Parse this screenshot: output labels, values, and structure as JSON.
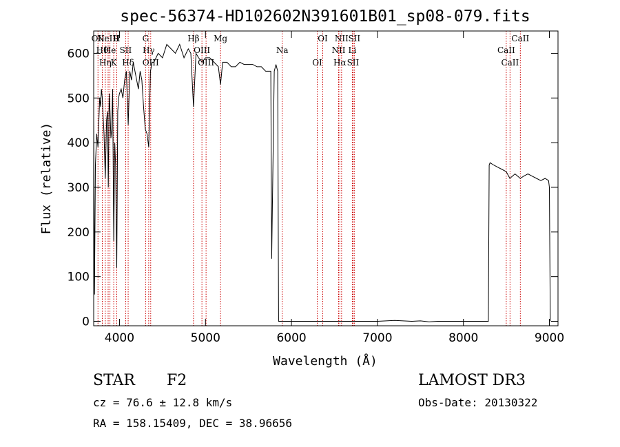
{
  "chart_data": {
    "type": "line",
    "title": "spec-56374-HD102602N391601B01_sp08-079.fits",
    "xlabel": "Wavelength (Å)",
    "ylabel": "Flux (relative)",
    "xlim": [
      3700,
      9100
    ],
    "ylim": [
      -10,
      650
    ],
    "xticks": [
      4000,
      5000,
      6000,
      7000,
      8000,
      9000
    ],
    "yticks": [
      0,
      100,
      200,
      300,
      400,
      500,
      600
    ],
    "grid": false,
    "series": [
      {
        "x": [
          3700,
          3710,
          3720,
          3735,
          3750,
          3760,
          3770,
          3780,
          3790,
          3800,
          3810,
          3820,
          3835,
          3850,
          3860,
          3870,
          3880,
          3890,
          3900,
          3910,
          3920,
          3933,
          3945,
          3955,
          3968,
          3980,
          3990,
          4000,
          4020,
          4040,
          4060,
          4080,
          4101,
          4120,
          4140,
          4160,
          4180,
          4200,
          4220,
          4240,
          4260,
          4280,
          4300,
          4320,
          4340,
          4360,
          4380,
          4400,
          4450,
          4500,
          4550,
          4600,
          4650,
          4700,
          4750,
          4800,
          4830,
          4861,
          4890,
          4920,
          4960,
          5000,
          5050,
          5100,
          5150,
          5175,
          5200,
          5250,
          5300,
          5350,
          5400,
          5450,
          5500,
          5550,
          5600,
          5650,
          5700,
          5740,
          5760,
          5770,
          5780,
          5800,
          5820,
          5840,
          5850,
          5900,
          6000,
          6500,
          7000,
          7100,
          7200,
          7300,
          7400,
          7500,
          7600,
          7700,
          7800,
          7900,
          8000,
          8100,
          8200,
          8250,
          8290,
          8300,
          8310,
          8350,
          8400,
          8450,
          8498,
          8540,
          8600,
          8662,
          8700,
          8750,
          8800,
          8850,
          8900,
          8950,
          8990,
          9000,
          9010
        ],
        "y": [
          450,
          60,
          350,
          420,
          390,
          450,
          500,
          480,
          520,
          500,
          460,
          420,
          320,
          450,
          470,
          300,
          510,
          470,
          410,
          430,
          520,
          180,
          400,
          350,
          120,
          470,
          500,
          510,
          520,
          500,
          540,
          560,
          440,
          560,
          540,
          580,
          560,
          540,
          520,
          560,
          540,
          480,
          430,
          420,
          390,
          560,
          580,
          580,
          600,
          590,
          620,
          610,
          600,
          620,
          590,
          610,
          600,
          480,
          600,
          590,
          580,
          590,
          590,
          580,
          570,
          530,
          580,
          580,
          570,
          570,
          580,
          575,
          575,
          575,
          570,
          570,
          560,
          560,
          560,
          140,
          280,
          560,
          575,
          560,
          0,
          0,
          0,
          0,
          0,
          1,
          2,
          1,
          0,
          1,
          -1,
          0,
          0,
          0,
          0,
          0,
          0,
          0,
          0,
          350,
          355,
          350,
          345,
          340,
          335,
          320,
          330,
          320,
          325,
          330,
          325,
          320,
          315,
          320,
          315,
          300,
          0
        ]
      }
    ],
    "lines": [
      {
        "x": 3750,
        "label": "OII"
      },
      {
        "x": 3800,
        "label": "Hθ"
      },
      {
        "x": 3835,
        "label": "Hη"
      },
      {
        "x": 3868,
        "label": "NeIII"
      },
      {
        "x": 3889,
        "label": "He"
      },
      {
        "x": 3933,
        "label": "K"
      },
      {
        "x": 3968,
        "label": "H"
      },
      {
        "x": 4072,
        "label": "SII"
      },
      {
        "x": 4101,
        "label": "Hδ"
      },
      {
        "x": 4304,
        "label": "G"
      },
      {
        "x": 4340,
        "label": "Hγ"
      },
      {
        "x": 4363,
        "label": "OIII"
      },
      {
        "x": 4861,
        "label": "Hβ"
      },
      {
        "x": 4959,
        "label": "OIII"
      },
      {
        "x": 5007,
        "label": "OIII"
      },
      {
        "x": 5175,
        "label": "Mg"
      },
      {
        "x": 5893,
        "label": "Na"
      },
      {
        "x": 6300,
        "label": "OI"
      },
      {
        "x": 6364,
        "label": "OI"
      },
      {
        "x": 6548,
        "label": "NII"
      },
      {
        "x": 6563,
        "label": "Hα"
      },
      {
        "x": 6583,
        "label": "NII"
      },
      {
        "x": 6708,
        "label": "Li"
      },
      {
        "x": 6716,
        "label": "SII"
      },
      {
        "x": 6731,
        "label": "SII"
      },
      {
        "x": 8498,
        "label": "CaII"
      },
      {
        "x": 8542,
        "label": "CaII"
      },
      {
        "x": 8662,
        "label": "CaII"
      }
    ],
    "line_color": "#cc0000",
    "trace_color": "#000000"
  },
  "info": {
    "class": "STAR",
    "subclass": "F2",
    "survey": "LAMOST DR3",
    "cz": "cz = 76.6 ± 12.8 km/s",
    "obsdate": "Obs-Date: 20130322",
    "radec": "RA = 158.15409, DEC =  38.96656"
  }
}
